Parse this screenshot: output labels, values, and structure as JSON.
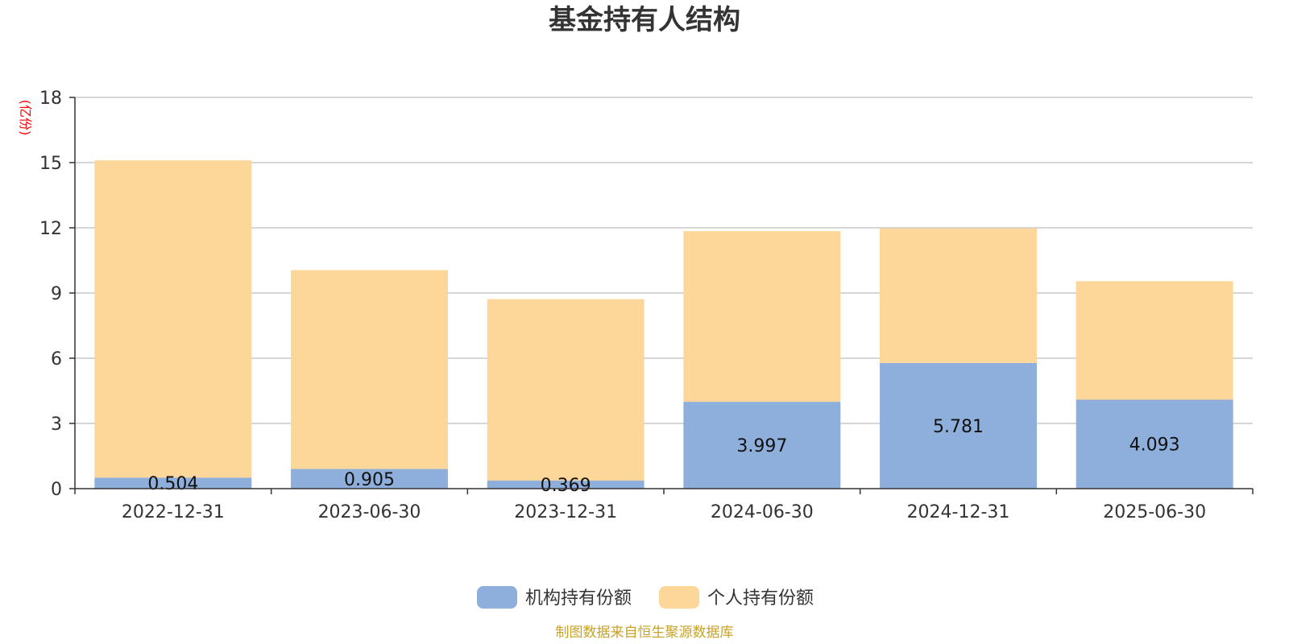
{
  "chart_data": {
    "type": "bar",
    "stacked": true,
    "title": "基金持有人结构",
    "ylabel": "(亿份)",
    "xlabel": "",
    "categories": [
      "2022-12-31",
      "2023-06-30",
      "2023-12-31",
      "2024-06-30",
      "2024-12-31",
      "2025-06-30"
    ],
    "ylim": [
      0,
      18
    ],
    "yticks": [
      0,
      3,
      6,
      9,
      12,
      15,
      18
    ],
    "grid": true,
    "legend_position": "bottom-center",
    "series": [
      {
        "name": "机构持有份额",
        "color": "#8eaedb",
        "values": [
          0.504,
          0.905,
          0.369,
          3.997,
          5.781,
          4.093
        ],
        "labels": [
          "0.504",
          "0.905",
          "0.369",
          "3.997",
          "5.781",
          "4.093"
        ]
      },
      {
        "name": "个人持有份额",
        "color": "#fdd79a",
        "values": [
          14.6,
          9.15,
          8.35,
          7.85,
          6.2,
          5.45
        ]
      }
    ]
  },
  "source_note": "制图数据来自恒生聚源数据库"
}
